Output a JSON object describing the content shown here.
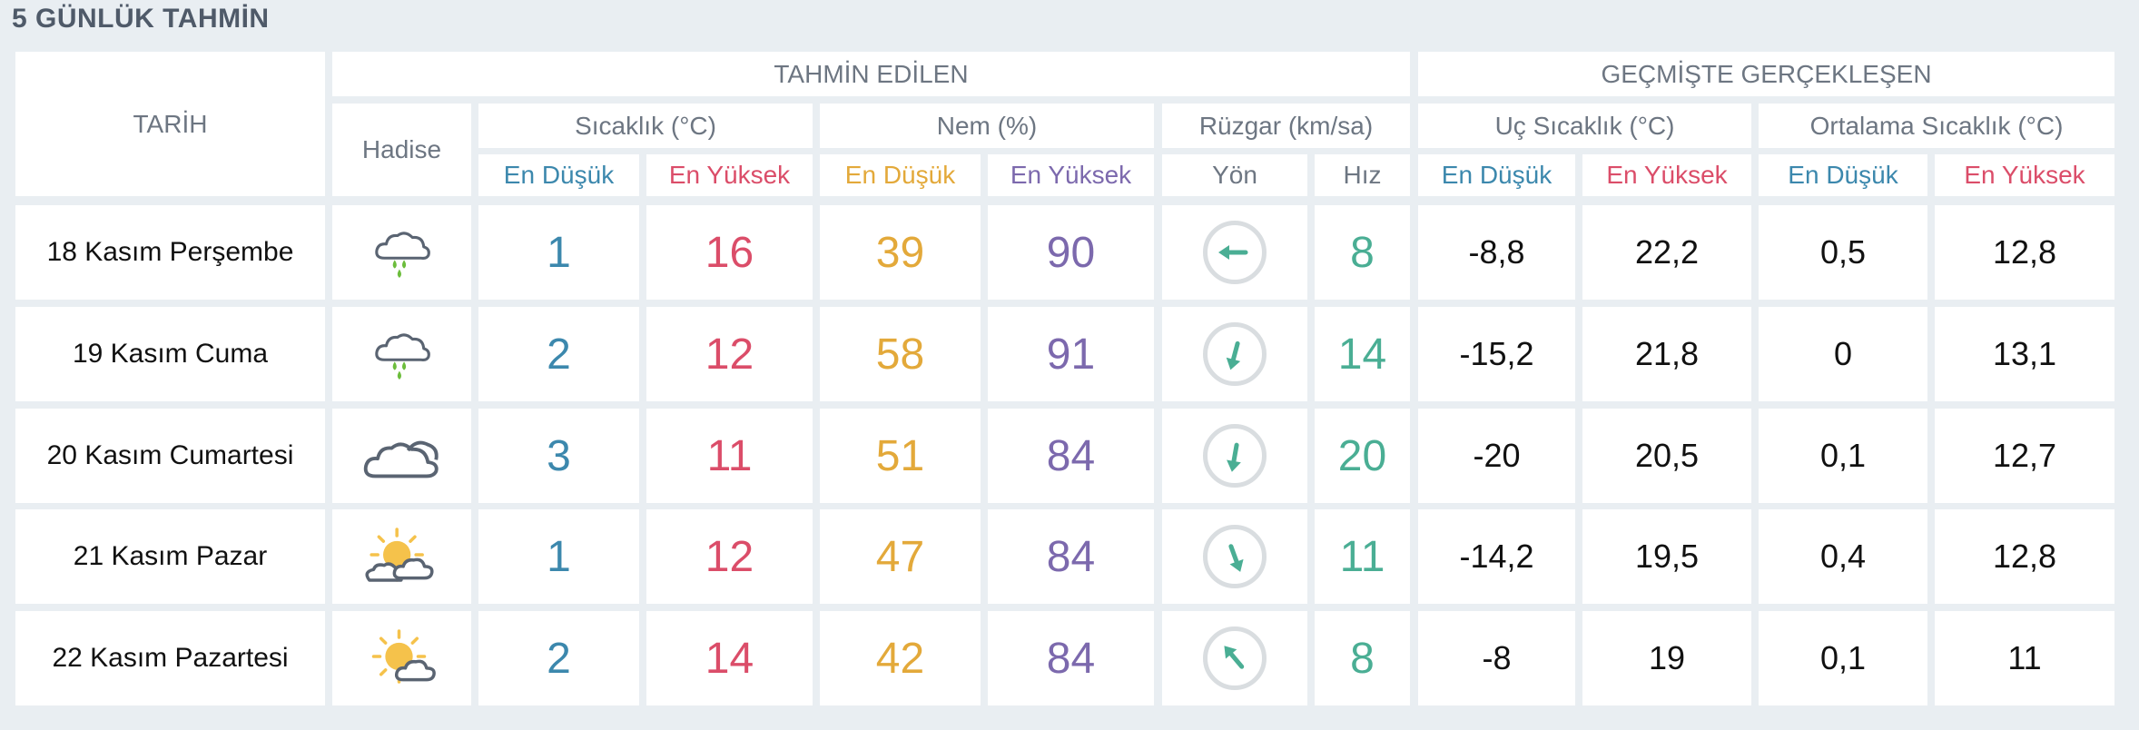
{
  "title": "5 GÜNLÜK TAHMİN",
  "headers": {
    "date": "TARİH",
    "forecast": "TAHMİN EDİLEN",
    "past": "GEÇMİŞTE GERÇEKLEŞEN",
    "event": "Hadise",
    "temp": "Sıcaklık (°C)",
    "humidity": "Nem (%)",
    "wind": "Rüzgar (km/sa)",
    "extreme_temp": "Uç Sıcaklık (°C)",
    "avg_temp": "Ortalama Sıcaklık (°C)",
    "low": "En Düşük",
    "high": "En Yüksek",
    "direction": "Yön",
    "speed": "Hız"
  },
  "colors": {
    "low": "#3c88ad",
    "high": "#db4d69",
    "humidity_low": "#e3a93a",
    "humidity_high": "#7c69ad",
    "wind": "#4aae94"
  },
  "rows": [
    {
      "date": "18 Kasım Perşembe",
      "icon": "rain-cloud-icon",
      "temp_low": "1",
      "temp_high": "16",
      "hum_low": "39",
      "hum_high": "90",
      "wind_dir_deg": 270,
      "wind_speed": "8",
      "ext_low": "-8,8",
      "ext_high": "22,2",
      "avg_low": "0,5",
      "avg_high": "12,8"
    },
    {
      "date": "19 Kasım Cuma",
      "icon": "rain-cloud-icon",
      "temp_low": "2",
      "temp_high": "12",
      "hum_low": "58",
      "hum_high": "91",
      "wind_dir_deg": 195,
      "wind_speed": "14",
      "ext_low": "-15,2",
      "ext_high": "21,8",
      "avg_low": "0",
      "avg_high": "13,1"
    },
    {
      "date": "20 Kasım Cumartesi",
      "icon": "cloud-icon",
      "temp_low": "3",
      "temp_high": "11",
      "hum_low": "51",
      "hum_high": "84",
      "wind_dir_deg": 190,
      "wind_speed": "20",
      "ext_low": "-20",
      "ext_high": "20,5",
      "avg_low": "0,1",
      "avg_high": "12,7"
    },
    {
      "date": "21 Kasım Pazar",
      "icon": "partly-cloudy-icon",
      "temp_low": "1",
      "temp_high": "12",
      "hum_low": "47",
      "hum_high": "84",
      "wind_dir_deg": 160,
      "wind_speed": "11",
      "ext_low": "-14,2",
      "ext_high": "19,5",
      "avg_low": "0,4",
      "avg_high": "12,8"
    },
    {
      "date": "22 Kasım Pazartesi",
      "icon": "sun-cloud-icon",
      "temp_low": "2",
      "temp_high": "14",
      "hum_low": "42",
      "hum_high": "84",
      "wind_dir_deg": 320,
      "wind_speed": "8",
      "ext_low": "-8",
      "ext_high": "19",
      "avg_low": "0,1",
      "avg_high": "11"
    }
  ]
}
